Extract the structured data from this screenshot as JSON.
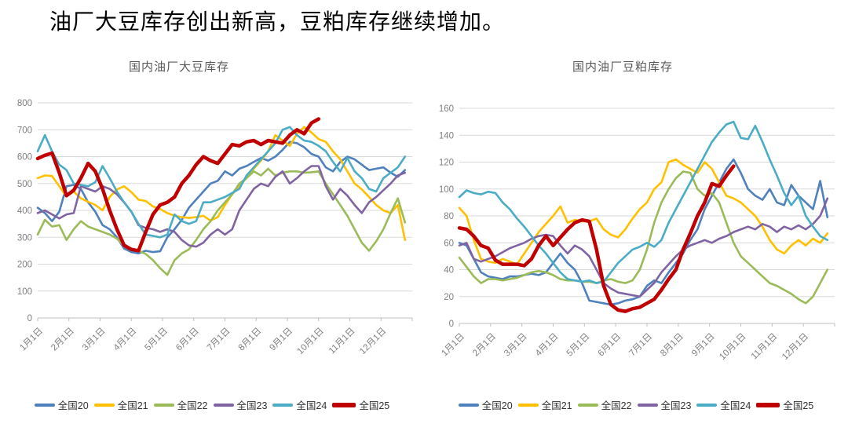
{
  "page": {
    "title": "油厂大豆库存创出新高，豆粕库存继续增加。"
  },
  "styles": {
    "background": "#FFFFFF",
    "grid_color": "#D9D9D9",
    "axis_color": "#BFBFBF",
    "tick_label_color": "#7F7F7F",
    "chart_title_color": "#595959",
    "legend_text_color": "#333333"
  },
  "chart_data": [
    {
      "type": "line",
      "title": "国内油厂大豆库存",
      "xlabel": "",
      "ylabel": "",
      "ylim": [
        0,
        800
      ],
      "ytick_step": 100,
      "yticks": [
        0,
        100,
        200,
        300,
        400,
        500,
        600,
        700,
        800
      ],
      "grid": true,
      "legend_position": "bottom",
      "x_categories": [
        "1月1日",
        "2月1日",
        "3月1日",
        "4月1日",
        "5月1日",
        "6月1日",
        "7月1日",
        "8月1日",
        "9月1日",
        "10月1日",
        "11月1日",
        "12月1日"
      ],
      "points_per_year": 52,
      "series": [
        {
          "name": "全国20",
          "color": "#4F81BD",
          "width": 2.6,
          "values": [
            410,
            390,
            360,
            395,
            490,
            495,
            480,
            430,
            395,
            345,
            330,
            300,
            258,
            245,
            240,
            250,
            245,
            248,
            300,
            330,
            365,
            410,
            440,
            470,
            500,
            510,
            545,
            530,
            555,
            565,
            580,
            595,
            585,
            600,
            625,
            655,
            650,
            635,
            610,
            600,
            560,
            545,
            580,
            600,
            590,
            570,
            550,
            555,
            560,
            540,
            525,
            550
          ]
        },
        {
          "name": "全国21",
          "color": "#FFC000",
          "width": 2.6,
          "values": [
            520,
            530,
            528,
            490,
            452,
            470,
            445,
            432,
            420,
            400,
            450,
            478,
            490,
            468,
            440,
            435,
            415,
            405,
            390,
            380,
            375,
            372,
            375,
            380,
            362,
            375,
            420,
            460,
            490,
            520,
            555,
            585,
            620,
            680,
            660,
            640,
            685,
            710,
            690,
            665,
            655,
            620,
            590,
            545,
            500,
            478,
            450,
            420,
            400,
            390,
            420,
            290
          ]
        },
        {
          "name": "全国22",
          "color": "#9BBB59",
          "width": 2.6,
          "values": [
            310,
            365,
            340,
            345,
            290,
            330,
            360,
            340,
            330,
            320,
            310,
            295,
            270,
            258,
            250,
            238,
            215,
            185,
            160,
            215,
            240,
            255,
            290,
            330,
            360,
            400,
            430,
            460,
            500,
            520,
            545,
            530,
            555,
            530,
            540,
            545,
            545,
            540,
            542,
            545,
            500,
            460,
            420,
            380,
            330,
            280,
            250,
            285,
            330,
            390,
            445,
            355
          ]
        },
        {
          "name": "全国23",
          "color": "#8064A2",
          "width": 2.6,
          "values": [
            390,
            400,
            385,
            370,
            385,
            390,
            490,
            480,
            470,
            490,
            480,
            460,
            430,
            395,
            345,
            335,
            330,
            320,
            330,
            320,
            290,
            270,
            265,
            280,
            310,
            330,
            310,
            330,
            400,
            440,
            480,
            500,
            490,
            525,
            545,
            500,
            520,
            545,
            565,
            565,
            490,
            440,
            480,
            455,
            420,
            390,
            430,
            450,
            475,
            500,
            530,
            540
          ]
        },
        {
          "name": "全国24",
          "color": "#4BACC6",
          "width": 2.6,
          "values": [
            620,
            680,
            620,
            570,
            550,
            500,
            495,
            490,
            505,
            565,
            520,
            470,
            430,
            395,
            350,
            310,
            305,
            300,
            310,
            385,
            360,
            350,
            360,
            430,
            430,
            440,
            450,
            465,
            480,
            530,
            560,
            590,
            620,
            650,
            700,
            710,
            680,
            660,
            655,
            640,
            620,
            580,
            545,
            595,
            545,
            520,
            480,
            470,
            520,
            540,
            560,
            600
          ]
        },
        {
          "name": "全国25",
          "color": "#C00000",
          "width": 4.5,
          "values": [
            593,
            605,
            613,
            540,
            455,
            475,
            520,
            575,
            545,
            480,
            400,
            330,
            270,
            255,
            250,
            320,
            385,
            420,
            430,
            450,
            500,
            530,
            570,
            600,
            585,
            575,
            610,
            645,
            640,
            655,
            660,
            645,
            660,
            655,
            650,
            680,
            700,
            685,
            725,
            740
          ]
        }
      ]
    },
    {
      "type": "line",
      "title": "国内油厂豆粕库存",
      "xlabel": "",
      "ylabel": "",
      "ylim": [
        0,
        160
      ],
      "ytick_step": 20,
      "yticks": [
        0,
        20,
        40,
        60,
        80,
        100,
        120,
        140,
        160
      ],
      "grid": true,
      "legend_position": "bottom",
      "x_categories": [
        "1月1日",
        "2月1日",
        "3月1日",
        "4月1日",
        "5月1日",
        "6月1日",
        "7月1日",
        "8月1日",
        "9月1日",
        "10月1日",
        "11月1日",
        "12月1日"
      ],
      "points_per_year": 52,
      "series": [
        {
          "name": "全国20",
          "color": "#4F81BD",
          "width": 2.6,
          "values": [
            60,
            58,
            48,
            38,
            35,
            34,
            33,
            35,
            35,
            36,
            37,
            36,
            38,
            45,
            52,
            45,
            40,
            30,
            17,
            16,
            15,
            14,
            15,
            17,
            18,
            20,
            28,
            32,
            30,
            38,
            45,
            52,
            62,
            70,
            85,
            95,
            105,
            115,
            122,
            112,
            100,
            95,
            92,
            100,
            90,
            88,
            103,
            95,
            90,
            85,
            106,
            79
          ]
        },
        {
          "name": "全国21",
          "color": "#FFC000",
          "width": 2.6,
          "values": [
            86,
            80,
            62,
            48,
            46,
            45,
            48,
            46,
            44,
            52,
            60,
            68,
            74,
            80,
            87,
            75,
            77,
            76,
            76,
            78,
            70,
            66,
            64,
            70,
            78,
            85,
            90,
            100,
            105,
            120,
            122,
            118,
            115,
            112,
            120,
            115,
            105,
            95,
            93,
            90,
            85,
            80,
            72,
            62,
            55,
            52,
            58,
            62,
            58,
            63,
            60,
            67
          ]
        },
        {
          "name": "全国22",
          "color": "#9BBB59",
          "width": 2.6,
          "values": [
            49,
            42,
            35,
            30,
            33,
            33,
            32,
            33,
            34,
            36,
            38,
            39,
            38,
            36,
            33,
            32,
            32,
            31,
            31,
            30,
            32,
            33,
            31,
            30,
            32,
            40,
            55,
            75,
            90,
            100,
            108,
            113,
            112,
            100,
            95,
            97,
            90,
            75,
            60,
            50,
            45,
            40,
            35,
            30,
            28,
            25,
            22,
            18,
            15,
            20,
            30,
            40
          ]
        },
        {
          "name": "全国23",
          "color": "#8064A2",
          "width": 2.6,
          "values": [
            58,
            60,
            48,
            46,
            48,
            50,
            53,
            56,
            58,
            60,
            63,
            65,
            66,
            65,
            58,
            52,
            58,
            55,
            50,
            40,
            30,
            26,
            23,
            22,
            21,
            20,
            25,
            30,
            38,
            44,
            50,
            55,
            58,
            60,
            62,
            60,
            63,
            65,
            68,
            70,
            72,
            70,
            74,
            72,
            68,
            72,
            70,
            73,
            70,
            74,
            80,
            93
          ]
        },
        {
          "name": "全国24",
          "color": "#4BACC6",
          "width": 2.6,
          "values": [
            94,
            99,
            97,
            96,
            98,
            97,
            90,
            85,
            78,
            72,
            65,
            58,
            52,
            45,
            38,
            33,
            32,
            31,
            32,
            30,
            31,
            38,
            45,
            50,
            55,
            57,
            60,
            57,
            62,
            75,
            85,
            95,
            105,
            115,
            125,
            135,
            142,
            148,
            150,
            138,
            137,
            147,
            135,
            122,
            110,
            97,
            88,
            95,
            80,
            72,
            65,
            62
          ]
        },
        {
          "name": "全国25",
          "color": "#C00000",
          "width": 4.5,
          "values": [
            71,
            70,
            65,
            58,
            56,
            47,
            44,
            44,
            44,
            43,
            48,
            58,
            65,
            58,
            64,
            70,
            75,
            77,
            76,
            55,
            28,
            14,
            10,
            9,
            11,
            12,
            15,
            18,
            25,
            33,
            40,
            55,
            67,
            80,
            90,
            104,
            102,
            110,
            117
          ]
        }
      ]
    }
  ]
}
